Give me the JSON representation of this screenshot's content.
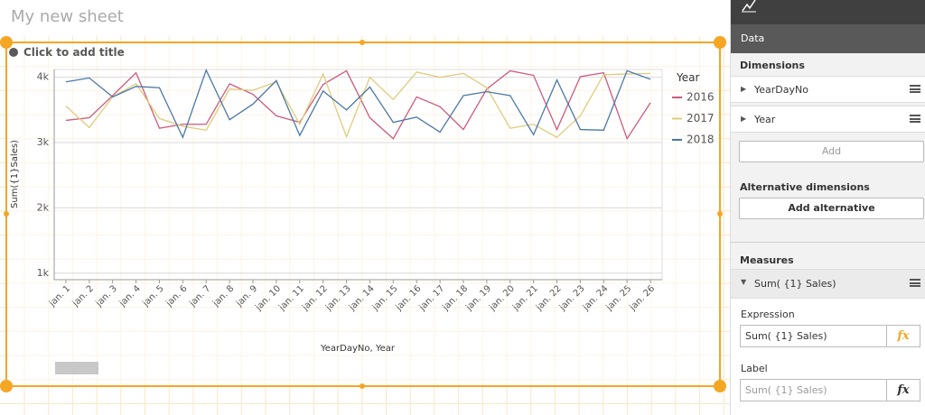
{
  "sheet_title": "My new sheet",
  "chart_data": {
    "type": "line",
    "title": "Click to add title",
    "x_label": "YearDayNo, Year",
    "y_label": "Sum({1}Sales)",
    "legend_title": "Year",
    "categories": [
      "jan. 1",
      "jan. 2",
      "jan. 3",
      "jan. 4",
      "jan. 5",
      "jan. 6",
      "jan. 7",
      "jan. 8",
      "jan. 9",
      "jan. 10",
      "jan. 11",
      "jan. 12",
      "jan. 13",
      "jan. 14",
      "jan. 15",
      "jan. 16",
      "jan. 17",
      "jan. 18",
      "jan. 19",
      "jan. 20",
      "jan. 21",
      "jan. 22",
      "jan. 23",
      "jan. 24",
      "jan. 25",
      "jan. 26"
    ],
    "series": [
      {
        "name": "2016",
        "color": "#cc5a7e",
        "values": [
          3340,
          3380,
          3720,
          4070,
          3220,
          3280,
          3280,
          3900,
          3740,
          3410,
          3310,
          3890,
          4100,
          3380,
          3060,
          3700,
          3550,
          3200,
          3820,
          4100,
          4030,
          3200,
          4010,
          4070,
          3060,
          3610
        ]
      },
      {
        "name": "2017",
        "color": "#e0cc7c",
        "values": [
          3560,
          3230,
          3700,
          3900,
          3370,
          3250,
          3190,
          3820,
          3800,
          3930,
          3280,
          4050,
          3090,
          4000,
          3660,
          4080,
          4000,
          4060,
          3840,
          3220,
          3280,
          3080,
          3410,
          4040,
          4050,
          4060
        ]
      },
      {
        "name": "2018",
        "color": "#4a78a8",
        "values": [
          3930,
          3990,
          3700,
          3860,
          3840,
          3080,
          4110,
          3350,
          3590,
          3950,
          3110,
          3790,
          3500,
          3850,
          3310,
          3390,
          3160,
          3720,
          3780,
          3720,
          3120,
          3960,
          3200,
          3190,
          4100,
          3970
        ]
      }
    ],
    "ylim": [
      900,
      4120
    ],
    "yticks": [
      {
        "value": 1000,
        "label": "1k"
      },
      {
        "value": 2000,
        "label": "2k"
      },
      {
        "value": 3000,
        "label": "3k"
      },
      {
        "value": 4000,
        "label": "4k"
      }
    ],
    "grid": true,
    "legend": "right"
  },
  "panel": {
    "tab": "Data",
    "dimensions_header": "Dimensions",
    "dimensions": [
      "YearDayNo",
      "Year"
    ],
    "add_button": "Add",
    "alt_header": "Alternative dimensions",
    "alt_button": "Add alternative",
    "measures_header": "Measures",
    "measure": "Sum( {1} Sales)",
    "expression_label": "Expression",
    "expression_value": "Sum( {1} Sales)",
    "label_label": "Label",
    "label_placeholder": "Sum( {1} Sales)",
    "fx": "fx"
  }
}
